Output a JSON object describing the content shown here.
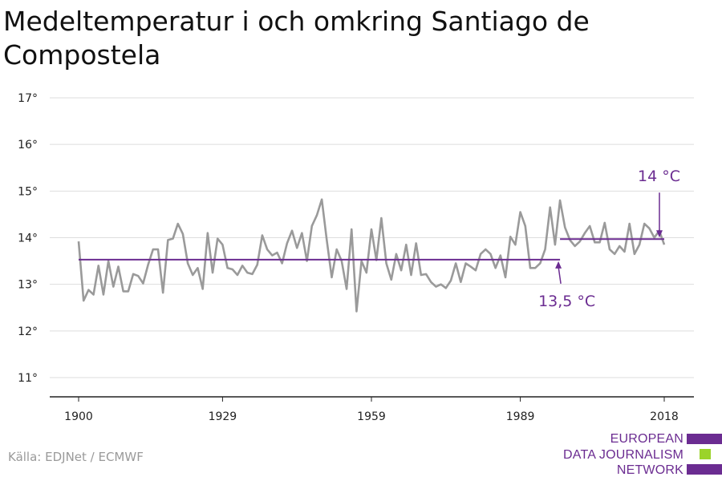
{
  "title": "Medeltemperatur i och omkring Santiago de Compostela",
  "source": "Källa: EDJNet / ECMWF",
  "logo": {
    "lines": [
      "EUROPEAN",
      "DATA JOURNALISM",
      "NETWORK"
    ],
    "colors": [
      "#6b2c91",
      "#9bd32a",
      "#6b2c91"
    ]
  },
  "colors": {
    "series": "#9a9a9a",
    "reference": "#6b2c91",
    "grid": "#dddddd",
    "axis": "#222222"
  },
  "chart_data": {
    "type": "line",
    "title": "Medeltemperatur i och omkring Santiago de Compostela",
    "xlabel": "",
    "ylabel": "",
    "xlim": [
      1900,
      2018
    ],
    "ylim": [
      11,
      17
    ],
    "x_ticks": [
      1900,
      1929,
      1959,
      1989,
      2018
    ],
    "y_ticks": [
      {
        "value": 11,
        "label": "11°"
      },
      {
        "value": 12,
        "label": "12°"
      },
      {
        "value": 13,
        "label": "13°"
      },
      {
        "value": 14,
        "label": "14°"
      },
      {
        "value": 15,
        "label": "15°"
      },
      {
        "value": 16,
        "label": "16°"
      },
      {
        "value": 17,
        "label": "17°"
      }
    ],
    "grid": true,
    "series": [
      {
        "x_start": 1900,
        "values": [
          13.92,
          12.65,
          12.88,
          12.78,
          13.4,
          12.78,
          13.5,
          12.95,
          13.38,
          12.85,
          12.85,
          13.22,
          13.18,
          13.02,
          13.42,
          13.75,
          13.75,
          12.82,
          13.95,
          13.98,
          14.3,
          14.08,
          13.45,
          13.2,
          13.35,
          12.9,
          14.1,
          13.25,
          13.98,
          13.85,
          13.35,
          13.32,
          13.2,
          13.4,
          13.25,
          13.22,
          13.42,
          14.05,
          13.75,
          13.62,
          13.68,
          13.45,
          13.88,
          14.15,
          13.78,
          14.1,
          13.5,
          14.25,
          14.48,
          14.82,
          13.95,
          13.15,
          13.75,
          13.5,
          12.9,
          14.18,
          12.42,
          13.5,
          13.25,
          14.18,
          13.52,
          14.42,
          13.45,
          13.1,
          13.65,
          13.3,
          13.85,
          13.2,
          13.88,
          13.2,
          13.22,
          13.05,
          12.95,
          13.0,
          12.92,
          13.08,
          13.45,
          13.05,
          13.45,
          13.38,
          13.3,
          13.65,
          13.75,
          13.65,
          13.35,
          13.62,
          13.15,
          14.02,
          13.85,
          14.55,
          14.25,
          13.35,
          13.35,
          13.45,
          13.75,
          14.65,
          13.85,
          14.8,
          14.22,
          13.95,
          13.82,
          13.92,
          14.1,
          14.25,
          13.9,
          13.9,
          14.32,
          13.75,
          13.65,
          13.82,
          13.7,
          14.3,
          13.65,
          13.85,
          14.3,
          14.2,
          14.0,
          14.15,
          13.85
        ]
      }
    ],
    "reference_lines": [
      {
        "label": "13,5 °C",
        "value": 13.53,
        "x_from": 1900,
        "x_to": 1997
      },
      {
        "label": "14 °C",
        "value": 13.97,
        "x_from": 1997,
        "x_to": 2018
      }
    ]
  }
}
